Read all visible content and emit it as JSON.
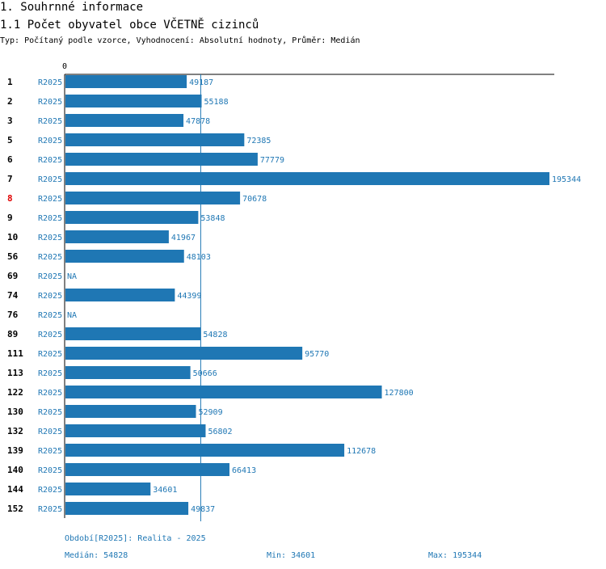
{
  "header": {
    "section_title": "1. Souhrnné informace",
    "chart_title": "1.1 Počet obyvatel obce VČETNĚ cizinců",
    "subtitle": "Typ: Počítaný podle vzorce, Vyhodnocení: Absolutní hodnoty, Průměr: Medián"
  },
  "colors": {
    "bar": "#1f77b4",
    "highlight": "#e00000",
    "text": "#000000",
    "axis": "#000000"
  },
  "chart_data": {
    "type": "bar",
    "orientation": "horizontal",
    "title": "1.1 Počet obyvatel obce VČETNĚ cizinců",
    "axis_origin_label": "0",
    "xlim": [
      0,
      195344
    ],
    "median_line": 54828,
    "series_label": "R2025",
    "highlight_category": "8",
    "categories": [
      "1",
      "2",
      "3",
      "5",
      "6",
      "7",
      "8",
      "9",
      "10",
      "56",
      "69",
      "74",
      "76",
      "89",
      "111",
      "113",
      "122",
      "130",
      "132",
      "139",
      "140",
      "144",
      "152"
    ],
    "values": [
      49187,
      55188,
      47878,
      72385,
      77779,
      195344,
      70678,
      53848,
      41967,
      48103,
      null,
      44399,
      null,
      54828,
      95770,
      50666,
      127800,
      52909,
      56802,
      112678,
      66413,
      34601,
      49837
    ],
    "value_labels": [
      "49187",
      "55188",
      "47878",
      "72385",
      "77779",
      "195344",
      "70678",
      "53848",
      "41967",
      "48103",
      "NA",
      "44399",
      "NA",
      "54828",
      "95770",
      "50666",
      "127800",
      "52909",
      "56802",
      "112678",
      "66413",
      "34601",
      "49837"
    ]
  },
  "footer": {
    "period": "Období[R2025]: Realita - 2025",
    "median": "Medián: 54828",
    "min": "Min: 34601",
    "max": "Max: 195344"
  }
}
